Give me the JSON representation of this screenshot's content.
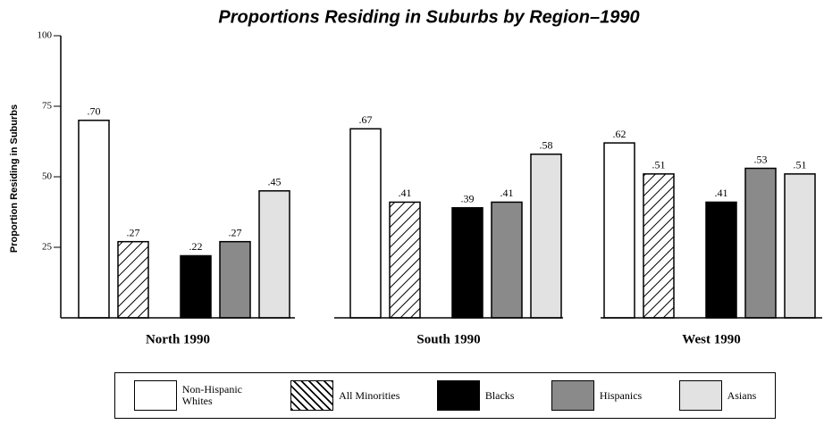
{
  "chart_data": {
    "type": "bar",
    "title": "Proportions Residing in Suburbs by Region–1990",
    "y_label": "Proportion Residing in Suburbs",
    "categories": [
      "North 1990",
      "South 1990",
      "West 1990"
    ],
    "series": [
      {
        "name": "Non-Hispanic Whites",
        "color": "#ffffff",
        "values": [
          70,
          67,
          62
        ],
        "value_labels": [
          ".70",
          ".67",
          ".62"
        ]
      },
      {
        "name": "All Minorities",
        "color": "#ffffff",
        "pattern": "hatch",
        "values": [
          27,
          41,
          51
        ],
        "value_labels": [
          ".27",
          ".41",
          ".51"
        ]
      },
      {
        "name": "Blacks",
        "color": "#000000",
        "values": [
          22,
          39,
          41
        ],
        "value_labels": [
          ".22",
          ".39",
          ".41"
        ]
      },
      {
        "name": "Hispanics",
        "color": "#8a8a8a",
        "values": [
          27,
          41,
          53
        ],
        "value_labels": [
          ".27",
          ".41",
          ".53"
        ]
      },
      {
        "name": "Asians",
        "color": "#e2e2e2",
        "values": [
          45,
          58,
          51
        ],
        "value_labels": [
          ".45",
          ".58",
          ".51"
        ]
      }
    ],
    "ylim": [
      0,
      100
    ],
    "yticks": [
      25,
      50,
      75,
      100
    ],
    "grid": false
  }
}
